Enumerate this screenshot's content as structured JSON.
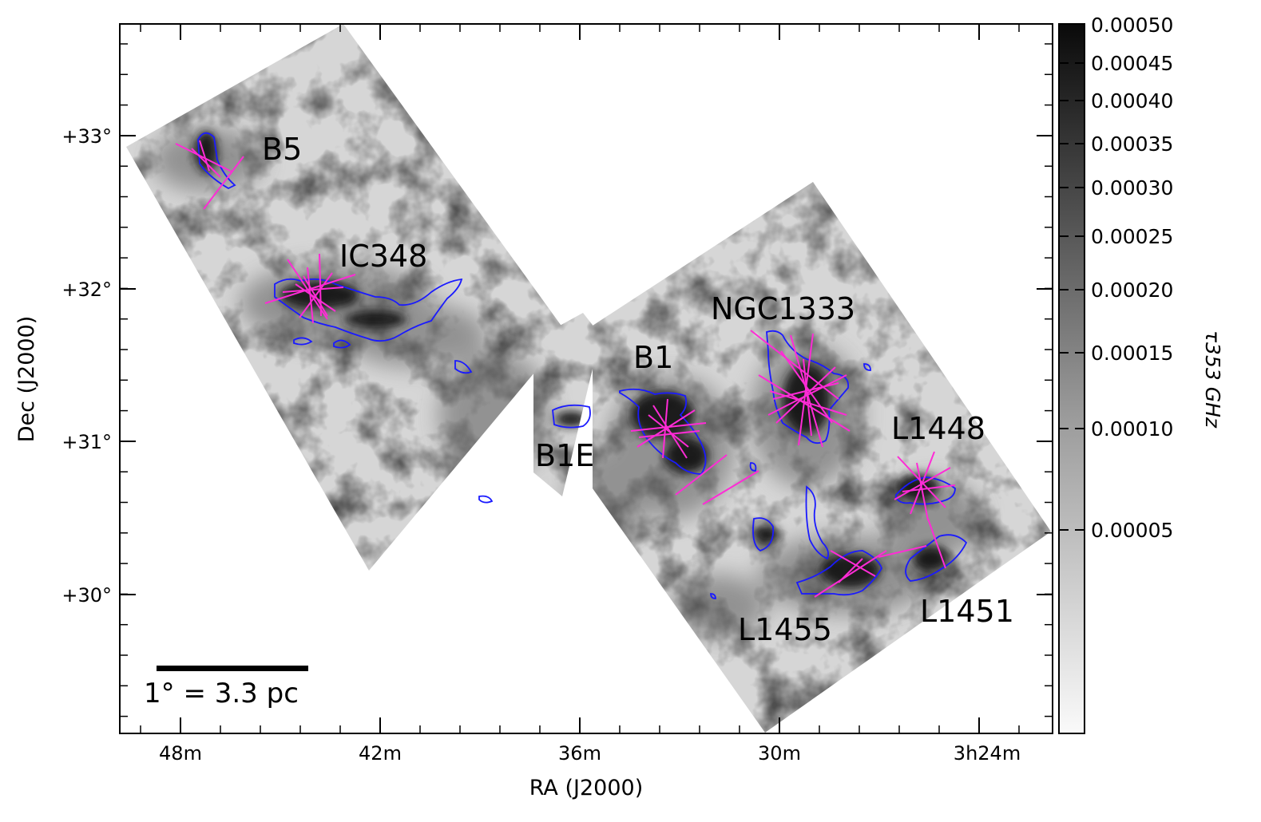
{
  "axes": {
    "xlabel": "RA (J2000)",
    "ylabel": "Dec (J2000)",
    "x_ticks": [
      "48m",
      "42m",
      "36m",
      "30m",
      "3h24m"
    ],
    "y_ticks": [
      "+33°",
      "+32°",
      "+31°",
      "+30°"
    ]
  },
  "colorbar": {
    "label": "τ353 GHz",
    "ticks": [
      "0.00050",
      "0.00045",
      "0.00040",
      "0.00035",
      "0.00030",
      "0.00025",
      "0.00020",
      "0.00015",
      "0.00010",
      "0.00005"
    ]
  },
  "regions": [
    "B5",
    "IC348",
    "NGC1333",
    "B1",
    "B1E",
    "L1448",
    "L1455",
    "L1451"
  ],
  "scale_bar": {
    "label": "1° = 3.3 pc"
  },
  "colors": {
    "contour": "#1a1aff",
    "polarization_vectors": "#ff2bd6",
    "map_light": "#d2d2d2",
    "map_dark": "#111111"
  }
}
